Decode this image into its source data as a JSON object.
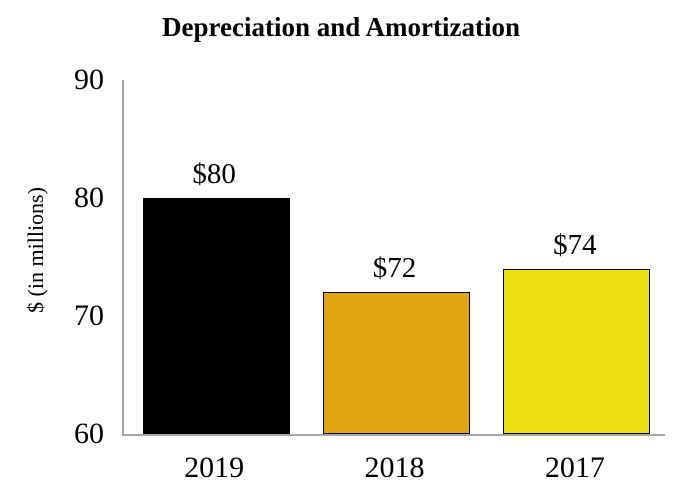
{
  "title": "Depreciation and Amortization",
  "chart_data": {
    "type": "bar",
    "title": "Depreciation and Amortization",
    "ylabel": "$ (in millions)",
    "xlabel": "",
    "categories": [
      "2019",
      "2018",
      "2017"
    ],
    "values": [
      80,
      72,
      74
    ],
    "bar_labels": [
      "$80",
      "$72",
      "$74"
    ],
    "bar_colors": [
      "#000000",
      "#E2A511",
      "#EDE011"
    ],
    "bar_border_color": "#000000",
    "ylim": [
      60,
      90
    ],
    "yticks": [
      90,
      80,
      70,
      60
    ],
    "grid": false,
    "legend": "none",
    "axis_color": "#A6A6A6",
    "background_color": "#FFFFFF",
    "text_color": "#000000"
  }
}
